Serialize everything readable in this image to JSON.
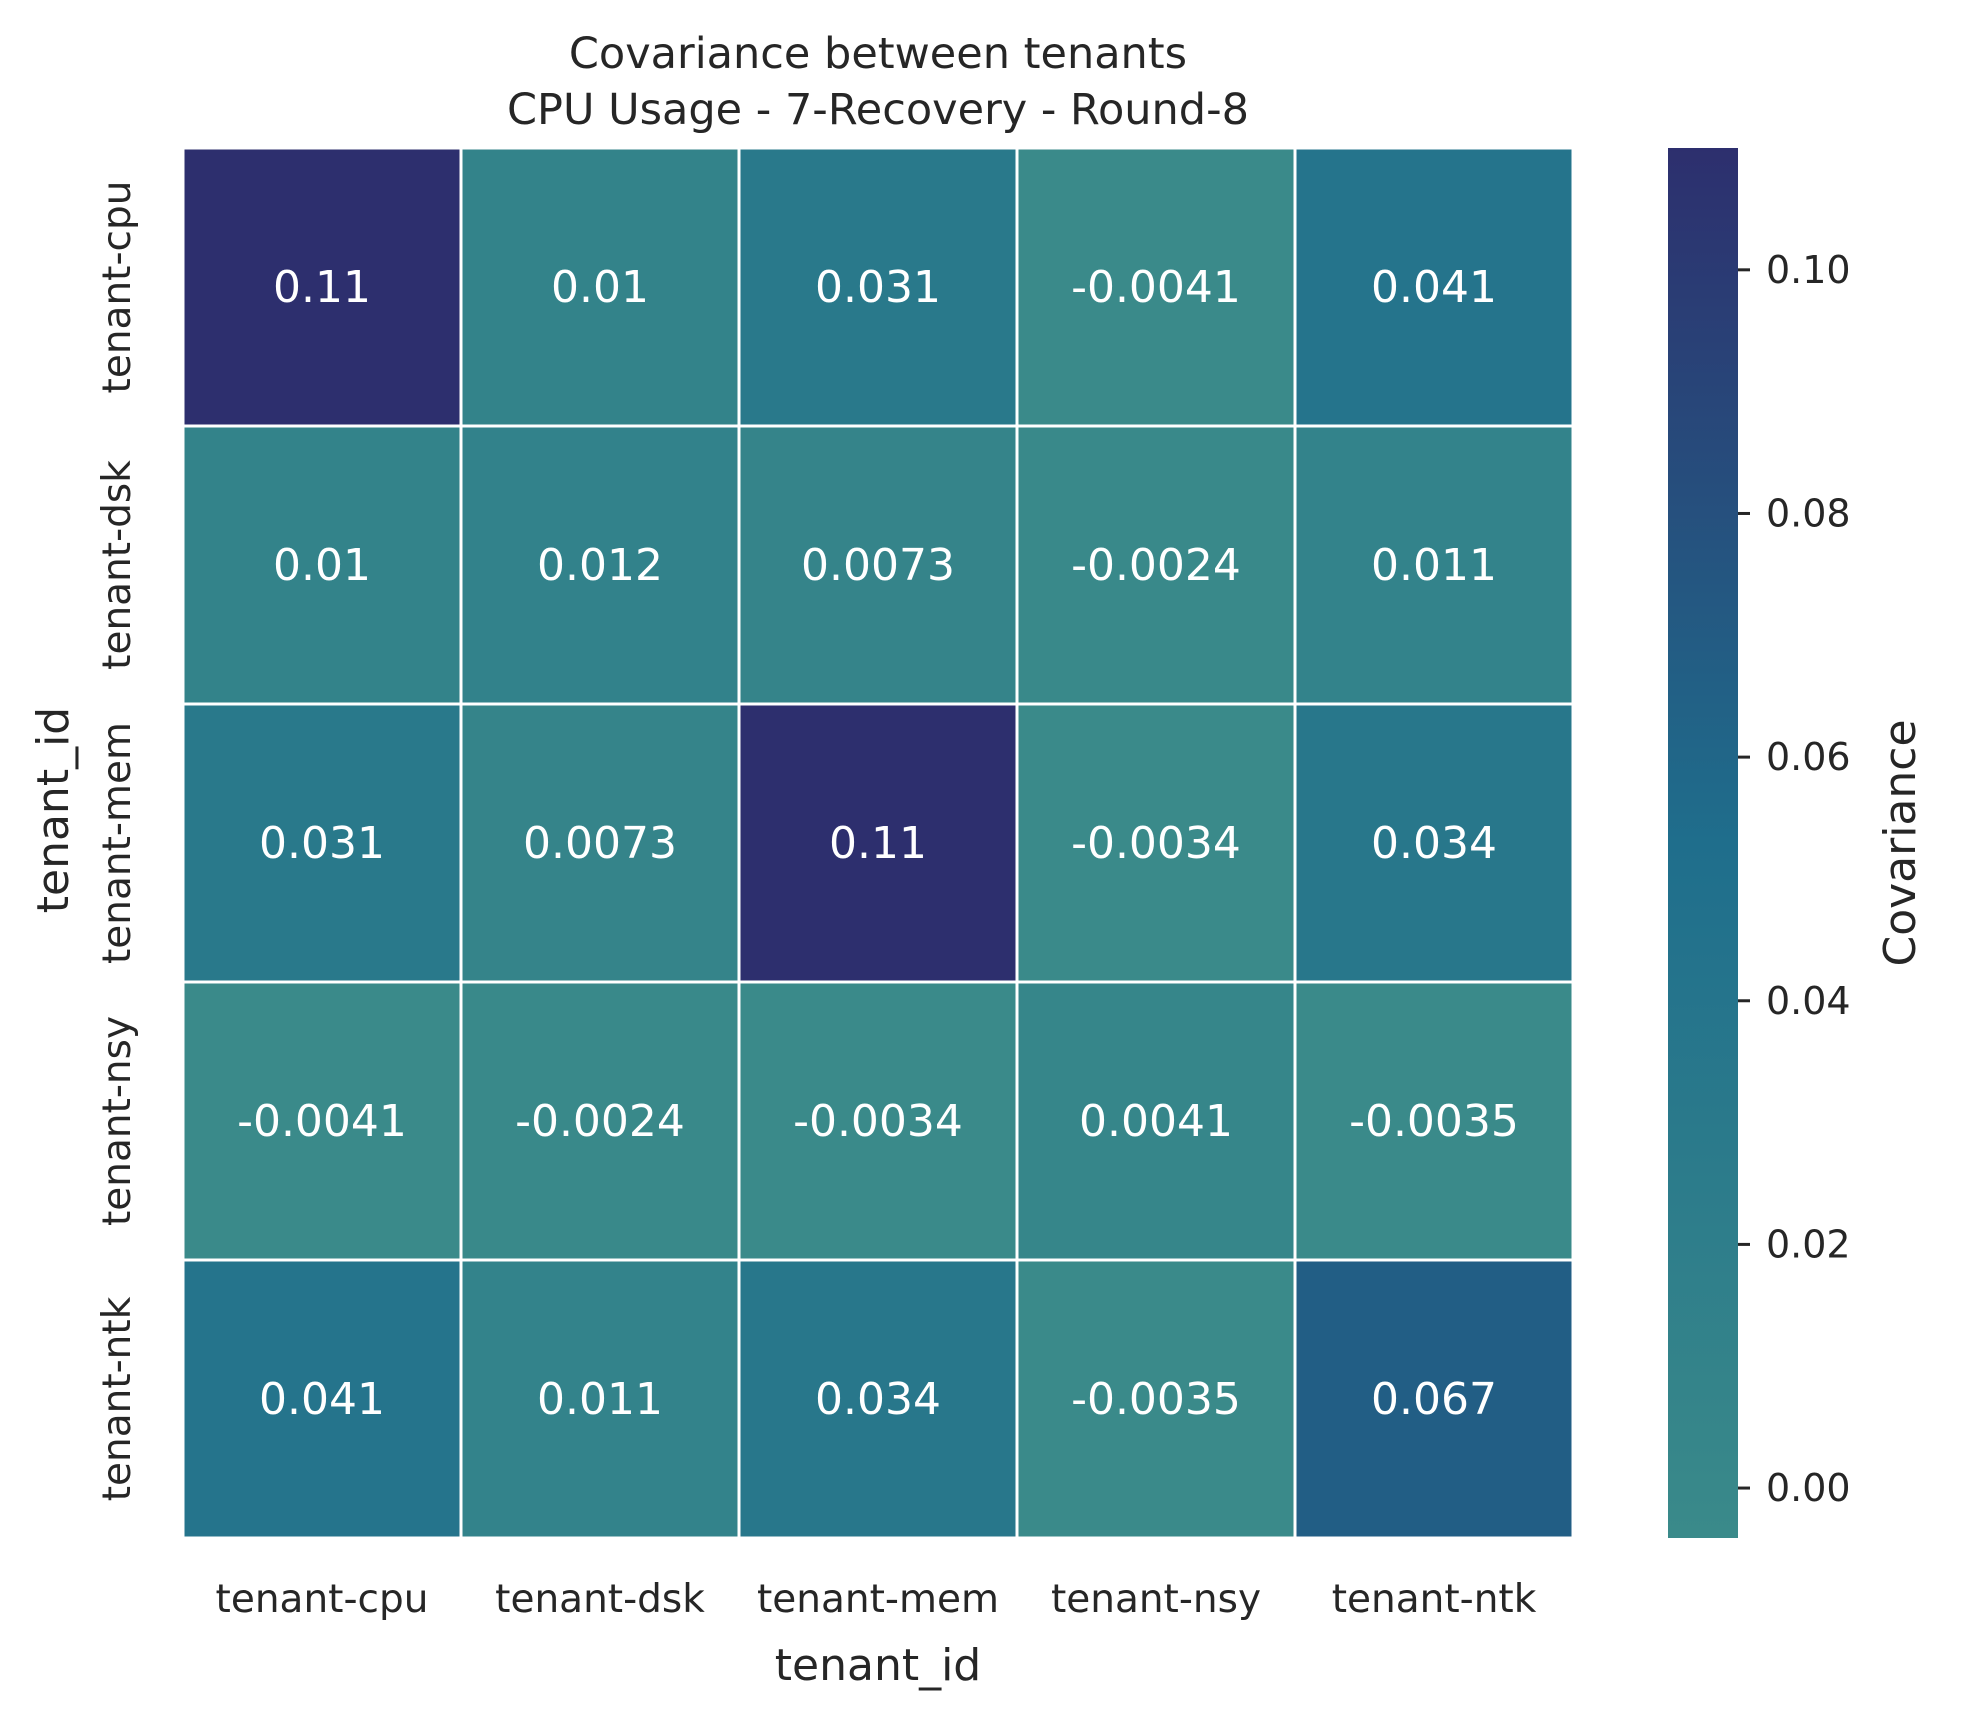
{
  "chart_data": {
    "type": "heatmap",
    "title": "Covariance between tenants",
    "subtitle": "CPU Usage - 7-Recovery - Round-8",
    "xlabel": "tenant_id",
    "ylabel": "tenant_id",
    "x_categories": [
      "tenant-cpu",
      "tenant-dsk",
      "tenant-mem",
      "tenant-nsy",
      "tenant-ntk"
    ],
    "y_categories": [
      "tenant-cpu",
      "tenant-dsk",
      "tenant-mem",
      "tenant-nsy",
      "tenant-ntk"
    ],
    "values": [
      [
        0.11,
        0.01,
        0.031,
        -0.0041,
        0.041
      ],
      [
        0.01,
        0.012,
        0.0073,
        -0.0024,
        0.011
      ],
      [
        0.031,
        0.0073,
        0.11,
        -0.0034,
        0.034
      ],
      [
        -0.0041,
        -0.0024,
        -0.0034,
        0.0041,
        -0.0035
      ],
      [
        0.041,
        0.011,
        0.034,
        -0.0035,
        0.067
      ]
    ],
    "labels": [
      [
        "0.11",
        "0.01",
        "0.031",
        "-0.0041",
        "0.041"
      ],
      [
        "0.01",
        "0.012",
        "0.0073",
        "-0.0024",
        "0.011"
      ],
      [
        "0.031",
        "0.0073",
        "0.11",
        "-0.0034",
        "0.034"
      ],
      [
        "-0.0041",
        "-0.0024",
        "-0.0034",
        "0.0041",
        "-0.0035"
      ],
      [
        "0.041",
        "0.011",
        "0.034",
        "-0.0035",
        "0.067"
      ]
    ],
    "colorbar": {
      "label": "Covariance",
      "range": [
        -0.0041,
        0.11
      ],
      "ticks": [
        0.0,
        0.02,
        0.04,
        0.06,
        0.08,
        0.1
      ],
      "tick_labels": [
        "0.00",
        "0.02",
        "0.04",
        "0.06",
        "0.08",
        "0.10"
      ],
      "color_low": "#3a8a8a",
      "color_high": "#2d2f6e"
    }
  }
}
